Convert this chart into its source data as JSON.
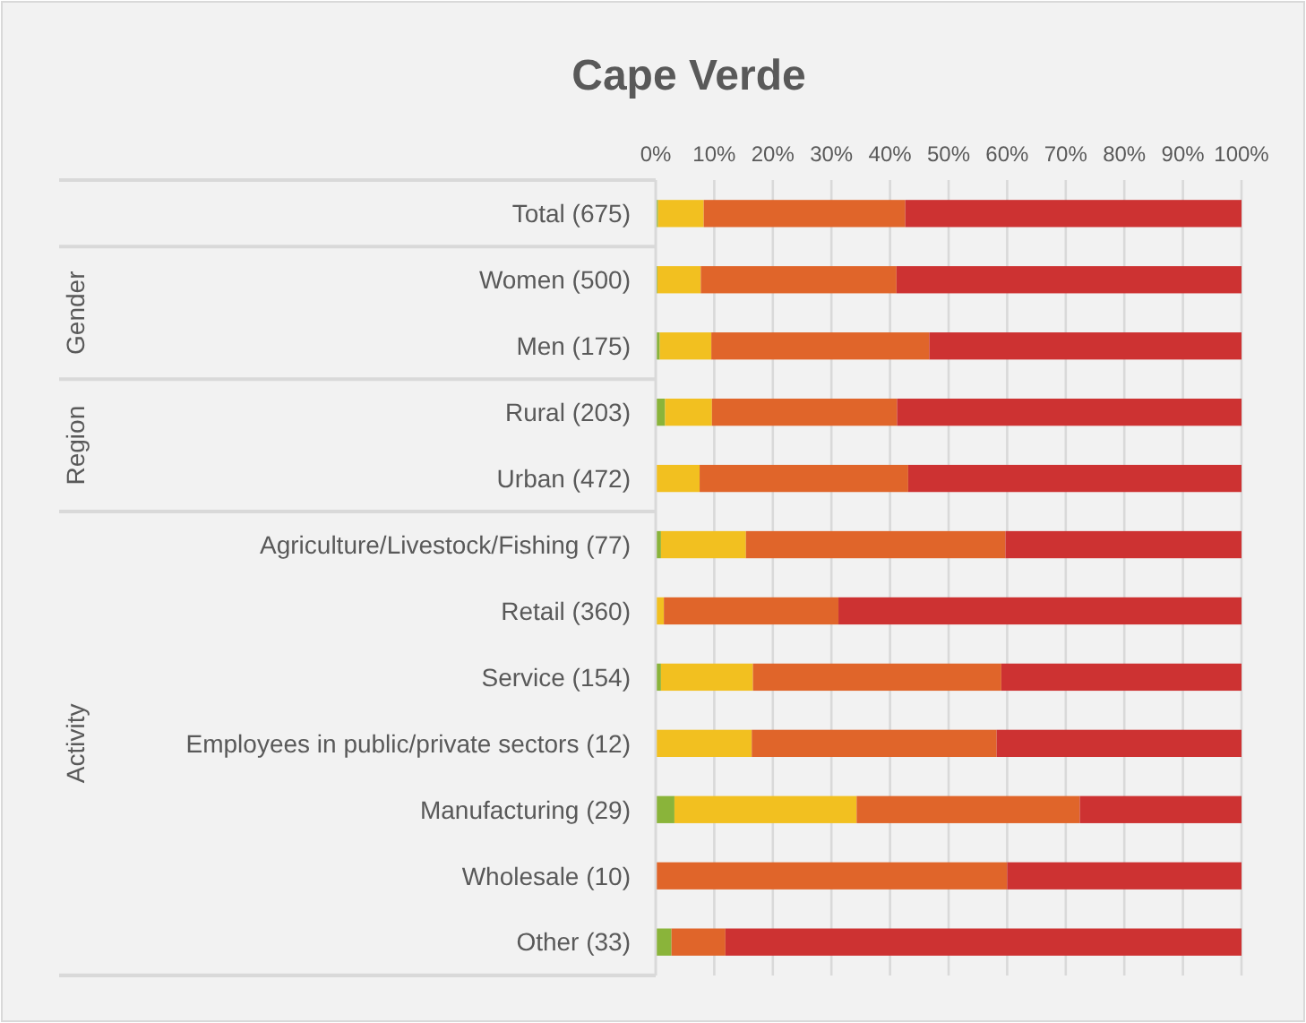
{
  "chart_data": {
    "type": "bar",
    "orientation": "horizontal",
    "stacked": true,
    "title": "Cape Verde",
    "categories": [
      "Total (675)",
      "Women (500)",
      "Men (175)",
      "Rural (203)",
      "Urban (472)",
      "Agriculture/Livestock/Fishing (77)",
      "Retail (360)",
      "Service (154)",
      "Employees in public/private sectors (12)",
      "Manufacturing (29)",
      "Wholesale (10)",
      "Other (33)"
    ],
    "series": [
      {
        "color": "#8ab43a",
        "values": [
          0.4,
          0.3,
          0.7,
          1.6,
          0,
          0.9,
          0,
          0.9,
          0,
          3.2,
          0,
          2.7
        ]
      },
      {
        "color": "#f2c020",
        "values": [
          7.8,
          7.4,
          8.8,
          8.0,
          7.5,
          14.5,
          1.4,
          15.7,
          16.4,
          31.1,
          0,
          0
        ]
      },
      {
        "color": "#e0652a",
        "values": [
          34.4,
          33.4,
          37.2,
          31.6,
          35.6,
          44.3,
          29.8,
          42.4,
          41.8,
          38.1,
          60,
          9.2
        ]
      },
      {
        "color": "#cd3232",
        "values": [
          57.4,
          58.9,
          53.3,
          58.8,
          56.9,
          40.3,
          68.8,
          41.0,
          41.8,
          27.6,
          40,
          88.1
        ]
      }
    ],
    "xlim": [
      0,
      100
    ],
    "xticks": [
      {
        "value": 0,
        "label": "0%"
      },
      {
        "value": 10,
        "label": "10%"
      },
      {
        "value": 20,
        "label": "20%"
      },
      {
        "value": 30,
        "label": "30%"
      },
      {
        "value": 40,
        "label": "40%"
      },
      {
        "value": 50,
        "label": "50%"
      },
      {
        "value": 60,
        "label": "60%"
      },
      {
        "value": 70,
        "label": "70%"
      },
      {
        "value": 80,
        "label": "80%"
      },
      {
        "value": 90,
        "label": "90%"
      },
      {
        "value": 100,
        "label": "100%"
      }
    ],
    "grid": "x",
    "annotations": [
      "Gender",
      "Region",
      "Activity"
    ]
  }
}
